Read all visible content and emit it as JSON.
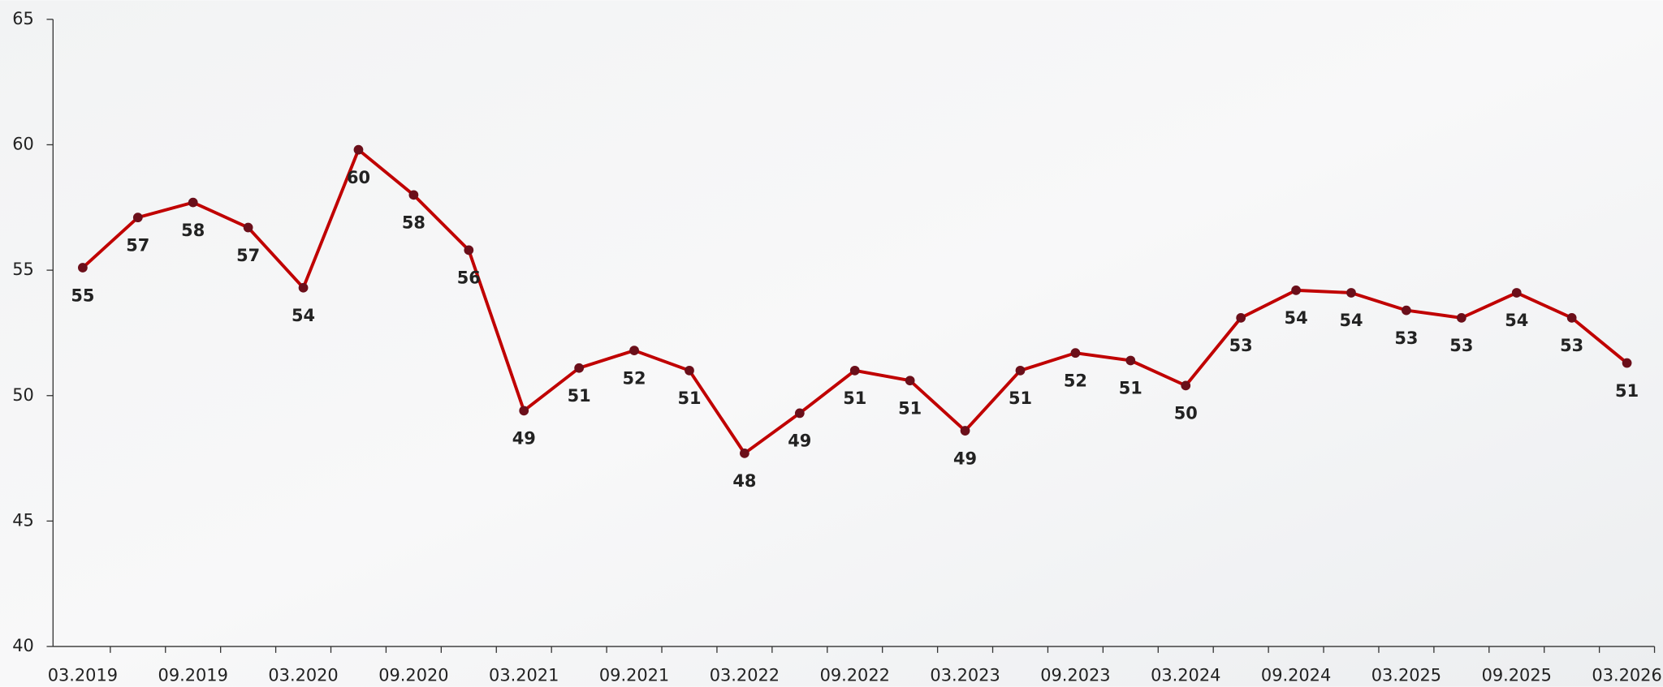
{
  "chart_data": {
    "type": "line",
    "categories": [
      "03.2019",
      null,
      "09.2019",
      null,
      "03.2020",
      null,
      "09.2020",
      null,
      "03.2021",
      null,
      "09.2021",
      null,
      "03.2022",
      null,
      "09.2022",
      null,
      "03.2023",
      null,
      "09.2023",
      null,
      "03.2024",
      null,
      "09.2024",
      null,
      "03.2025",
      null,
      "09.2025",
      null,
      "03.2026"
    ],
    "values": [
      55.1,
      57.1,
      57.7,
      56.7,
      54.3,
      59.8,
      58.0,
      55.8,
      49.4,
      51.1,
      51.8,
      51.0,
      47.7,
      49.3,
      51.0,
      50.6,
      48.6,
      51.0,
      51.7,
      51.4,
      50.4,
      53.1,
      54.2,
      54.1,
      53.4,
      53.1,
      54.1,
      53.1,
      51.3
    ],
    "value_labels": [
      "55",
      "57",
      "58",
      "57",
      "54",
      "60",
      "58",
      "56",
      "49",
      "51",
      "52",
      "51",
      "48",
      "49",
      "51",
      "51",
      "49",
      "51",
      "52",
      "51",
      "50",
      "53",
      "54",
      "54",
      "53",
      "53",
      "54",
      "53",
      "51"
    ],
    "color": "#c00000",
    "marker_color": "#6b0f1a",
    "ylim": [
      40,
      65
    ],
    "yticks": [
      40,
      45,
      50,
      55,
      60,
      65
    ],
    "grid": false
  }
}
